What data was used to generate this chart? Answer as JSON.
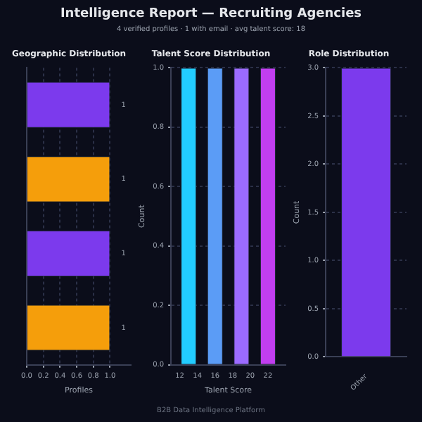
{
  "chart_data": [
    {
      "type": "other",
      "title": "Intelligence Report — Recruiting Agencies",
      "subtitle": "4 verified profiles  ·  1 with email  ·  avg talent score: 18",
      "annotations": [
        "B2B Data Intelligence Platform"
      ]
    },
    {
      "type": "bar",
      "title": "Geographic Distribution",
      "orientation": "horizontal",
      "categories": [
        null,
        null,
        null,
        null
      ],
      "values": [
        1,
        1,
        1,
        1
      ],
      "colors": [
        "#7c3aed",
        "#f59e0b",
        "#7c3aed",
        "#f59e0b"
      ],
      "xlabel": "Profiles",
      "xlim": [
        0,
        1.25
      ],
      "xticks": [
        {
          "value": 0,
          "label": "0.0"
        },
        0.2,
        0.4,
        0.6,
        0.8,
        {
          "value": 1,
          "label": "1.0"
        }
      ],
      "grid": "x",
      "data_labels": true
    },
    {
      "type": "histogram",
      "title": "Talent Score Distribution",
      "bins": [
        11.5,
        14.5,
        17.5,
        20.5,
        23.5
      ],
      "values": [
        1,
        1,
        1,
        1
      ],
      "colors": [
        "#22ccff",
        "#5b9cf6",
        "#9b6bff",
        "#c13ef0"
      ],
      "xlabel": "Talent Score",
      "ylabel": "Count",
      "xlim": [
        11,
        24
      ],
      "xticks": [
        12,
        14,
        16,
        18,
        20,
        22
      ],
      "ylim": [
        0,
        1
      ],
      "yticks": [
        {
          "value": 0,
          "label": "0.0"
        },
        0.2,
        0.4,
        0.6,
        0.8,
        {
          "value": 1,
          "label": "1.0"
        }
      ],
      "grid": "y"
    },
    {
      "type": "bar",
      "title": "Role Distribution",
      "categories": [
        "Other"
      ],
      "values": [
        3
      ],
      "color": "#7c3aed",
      "ylabel": "Count",
      "ylim": [
        0,
        3
      ],
      "yticks": [
        {
          "value": 0,
          "label": "0.0"
        },
        0.5,
        {
          "value": 1,
          "label": "1.0"
        },
        1.5,
        {
          "value": 2,
          "label": "2.0"
        },
        2.5,
        {
          "value": 3,
          "label": "3.0"
        }
      ],
      "grid": "y"
    }
  ]
}
